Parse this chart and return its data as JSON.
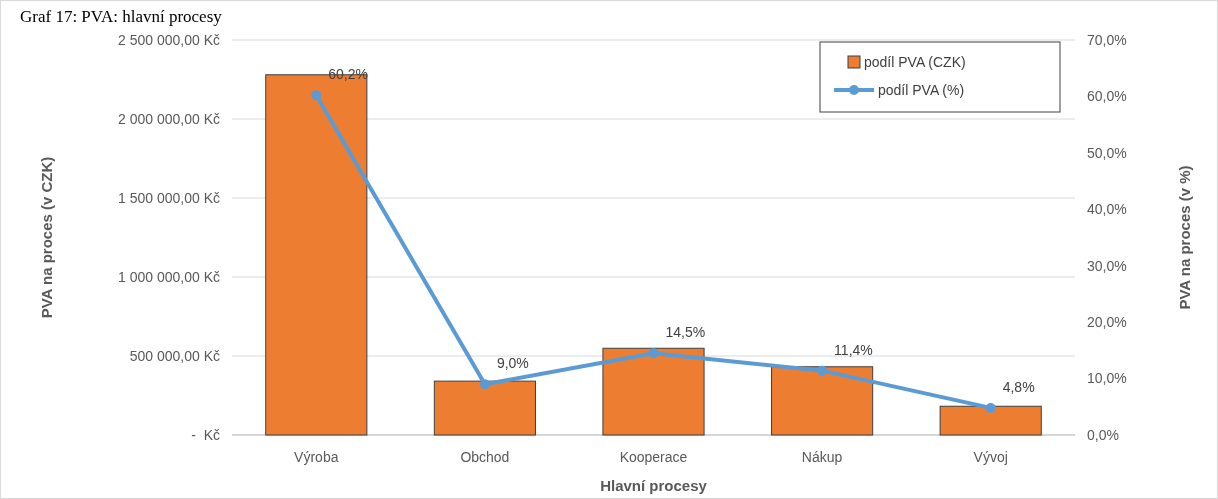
{
  "chart_data": {
    "type": "bar",
    "title": "Graf 17: PVA: hlavní procesy",
    "xlabel": "Hlavní procesy",
    "ylabel": "PVA na proces (v CZK)",
    "y2label": "PVA na proces (v %)",
    "categories": [
      "Výroba",
      "Obchod",
      "Kooperace",
      "Nákup",
      "Vývoj"
    ],
    "series": [
      {
        "name": "podíl PVA (CZK)",
        "color": "#ed7d31",
        "values": [
          2280000,
          341000,
          549000,
          432000,
          182000
        ]
      },
      {
        "name": "podíl PVA (%)",
        "type": "line",
        "axis": "y2",
        "color": "#5b9bd5",
        "marker": "circle",
        "values": [
          60.2,
          9.0,
          14.5,
          11.4,
          4.8
        ],
        "value_labels": [
          "60,2%",
          "9,0%",
          "14,5%",
          "11,4%",
          "4,8%"
        ]
      }
    ],
    "ylim": [
      0,
      2500000
    ],
    "yticks": [
      {
        "value": 0,
        "label": "-  Kč"
      },
      {
        "value": 500000,
        "label": "500 000,00 Kč"
      },
      {
        "value": 1000000,
        "label": "1 000 000,00 Kč"
      },
      {
        "value": 1500000,
        "label": "1 500 000,00 Kč"
      },
      {
        "value": 2000000,
        "label": "2 000 000,00 Kč"
      },
      {
        "value": 2500000,
        "label": "2 500 000,00 Kč"
      }
    ],
    "y2lim": [
      0,
      70
    ],
    "y2ticks": [
      {
        "value": 0,
        "label": "0,0%"
      },
      {
        "value": 10,
        "label": "10,0%"
      },
      {
        "value": 20,
        "label": "20,0%"
      },
      {
        "value": 30,
        "label": "30,0%"
      },
      {
        "value": 40,
        "label": "40,0%"
      },
      {
        "value": 50,
        "label": "50,0%"
      },
      {
        "value": 60,
        "label": "60,0%"
      },
      {
        "value": 70,
        "label": "70,0%"
      }
    ],
    "grid": "y",
    "legend": "top right"
  }
}
